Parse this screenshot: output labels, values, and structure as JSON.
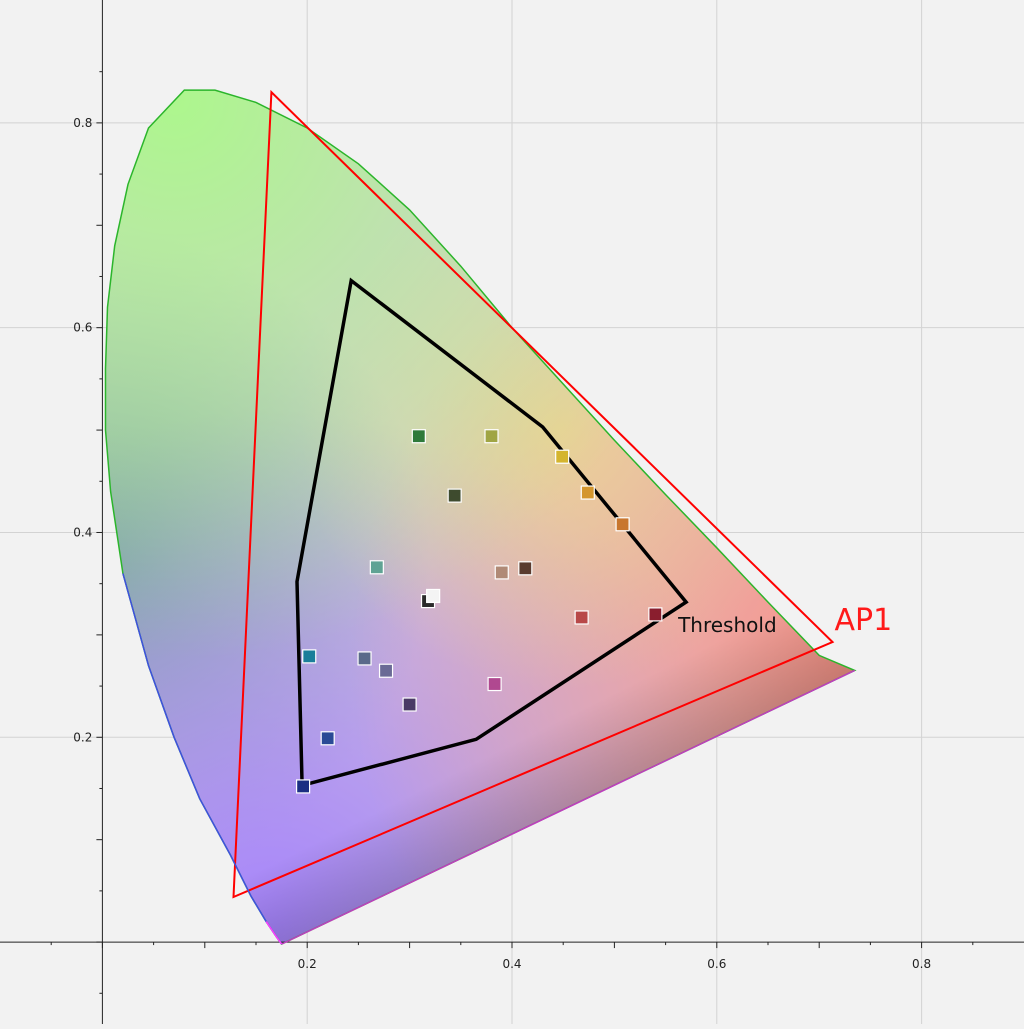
{
  "chart_data": {
    "type": "scatter",
    "title": "",
    "xlabel": "",
    "ylabel": "",
    "xlim": [
      -0.1,
      0.9
    ],
    "ylim": [
      -0.08,
      0.92
    ],
    "grid": true,
    "x_ticks": [
      {
        "value": 0.2,
        "label": "0.2"
      },
      {
        "value": 0.4,
        "label": "0.4"
      },
      {
        "value": 0.6,
        "label": "0.6"
      },
      {
        "value": 0.8,
        "label": "0.8"
      }
    ],
    "y_ticks": [
      {
        "value": 0.2,
        "label": "0.2"
      },
      {
        "value": 0.4,
        "label": "0.4"
      },
      {
        "value": 0.6,
        "label": "0.6"
      },
      {
        "value": 0.8,
        "label": "0.8"
      }
    ],
    "spectral_locus": [
      [
        0.175,
        -0.002
      ],
      [
        0.17,
        0.005
      ],
      [
        0.16,
        0.02
      ],
      [
        0.145,
        0.045
      ],
      [
        0.125,
        0.085
      ],
      [
        0.095,
        0.14
      ],
      [
        0.07,
        0.2
      ],
      [
        0.045,
        0.27
      ],
      [
        0.02,
        0.36
      ],
      [
        0.008,
        0.44
      ],
      [
        0.003,
        0.5
      ],
      [
        0.003,
        0.56
      ],
      [
        0.005,
        0.62
      ],
      [
        0.012,
        0.68
      ],
      [
        0.025,
        0.74
      ],
      [
        0.045,
        0.795
      ],
      [
        0.08,
        0.832
      ],
      [
        0.11,
        0.832
      ],
      [
        0.15,
        0.82
      ],
      [
        0.2,
        0.795
      ],
      [
        0.25,
        0.76
      ],
      [
        0.3,
        0.715
      ],
      [
        0.35,
        0.66
      ],
      [
        0.4,
        0.6
      ],
      [
        0.45,
        0.545
      ],
      [
        0.5,
        0.49
      ],
      [
        0.55,
        0.437
      ],
      [
        0.6,
        0.385
      ],
      [
        0.65,
        0.332
      ],
      [
        0.7,
        0.28
      ],
      [
        0.7347,
        0.2653
      ]
    ],
    "ap1_gamut": {
      "label": "AP1",
      "color": "#ff0000",
      "points": [
        [
          0.713,
          0.293
        ],
        [
          0.165,
          0.83
        ],
        [
          0.128,
          0.044
        ]
      ]
    },
    "threshold_gamut": {
      "label": "Threshold",
      "color": "#000000",
      "points": [
        [
          0.243,
          0.646
        ],
        [
          0.43,
          0.503
        ],
        [
          0.57,
          0.332
        ],
        [
          0.365,
          0.198
        ],
        [
          0.195,
          0.153
        ],
        [
          0.19,
          0.352
        ]
      ]
    },
    "patches": [
      {
        "x": 0.309,
        "y": 0.494,
        "color": "#2e7a3a"
      },
      {
        "x": 0.38,
        "y": 0.494,
        "color": "#a0a543"
      },
      {
        "x": 0.449,
        "y": 0.474,
        "color": "#d4b52e"
      },
      {
        "x": 0.474,
        "y": 0.439,
        "color": "#d4962e"
      },
      {
        "x": 0.508,
        "y": 0.408,
        "color": "#c8762e"
      },
      {
        "x": 0.344,
        "y": 0.436,
        "color": "#3e4b2e"
      },
      {
        "x": 0.268,
        "y": 0.366,
        "color": "#5fa394"
      },
      {
        "x": 0.318,
        "y": 0.333,
        "color": "#2a2a2a"
      },
      {
        "x": 0.323,
        "y": 0.338,
        "color": "#f4f4f4"
      },
      {
        "x": 0.39,
        "y": 0.361,
        "color": "#b08a76"
      },
      {
        "x": 0.413,
        "y": 0.365,
        "color": "#5a3b2e"
      },
      {
        "x": 0.468,
        "y": 0.317,
        "color": "#b84848"
      },
      {
        "x": 0.54,
        "y": 0.32,
        "color": "#8a1e2e"
      },
      {
        "x": 0.202,
        "y": 0.279,
        "color": "#1a7e9a"
      },
      {
        "x": 0.256,
        "y": 0.277,
        "color": "#5a6a8a"
      },
      {
        "x": 0.277,
        "y": 0.265,
        "color": "#6a6a96"
      },
      {
        "x": 0.383,
        "y": 0.252,
        "color": "#b04890"
      },
      {
        "x": 0.3,
        "y": 0.232,
        "color": "#4a3a66"
      },
      {
        "x": 0.22,
        "y": 0.199,
        "color": "#2a4a96"
      },
      {
        "x": 0.196,
        "y": 0.152,
        "color": "#1a2e82"
      }
    ]
  }
}
